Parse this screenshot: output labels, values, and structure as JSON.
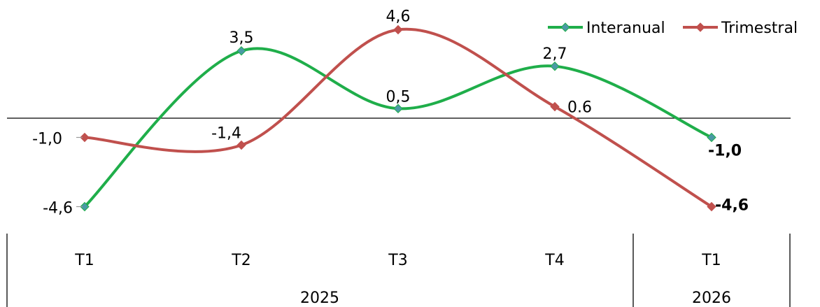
{
  "chart_data": {
    "type": "line",
    "smooth": true,
    "categories": [
      "T1",
      "T2",
      "T3",
      "T4",
      "T1"
    ],
    "years": [
      {
        "label": "2025",
        "span": 4
      },
      {
        "label": "2026",
        "span": 1
      }
    ],
    "series": [
      {
        "name": "Interanual",
        "color": "#1fae4a",
        "marker_color": "#4a9aa5",
        "values": [
          -4.6,
          3.5,
          0.5,
          2.7,
          -1.0
        ],
        "labels": [
          "-4,6",
          "3,5",
          "0,5",
          "2,7",
          "-1,0"
        ]
      },
      {
        "name": "Trimestral",
        "color": "#c0504d",
        "marker_color": "#c0504d",
        "values": [
          -1.0,
          -1.4,
          4.6,
          0.6,
          -4.6
        ],
        "labels": [
          "-1,0",
          "-1,4",
          "4,6",
          "0.6",
          "-4,6"
        ]
      }
    ],
    "ylim": [
      -5.5,
      5.1
    ],
    "legend": "top-right",
    "grid": false,
    "zero_line": true
  }
}
